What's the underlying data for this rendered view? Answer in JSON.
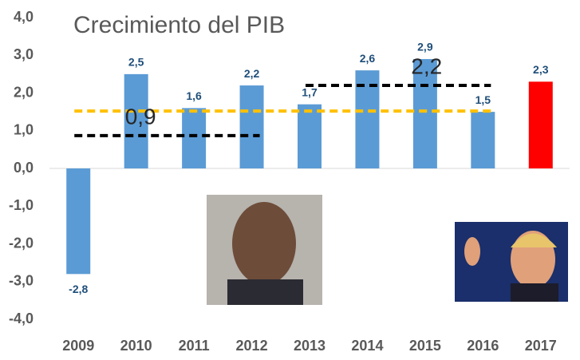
{
  "chart_data": {
    "type": "bar",
    "title": "Crecimiento del PIB",
    "categories": [
      "2009",
      "2010",
      "2011",
      "2012",
      "2013",
      "2014",
      "2015",
      "2016",
      "2017"
    ],
    "values": [
      -2.8,
      2.5,
      1.6,
      2.2,
      1.7,
      2.6,
      2.9,
      1.5,
      2.3
    ],
    "value_labels": [
      "-2,8",
      "2,5",
      "1,6",
      "2,2",
      "1,7",
      "2,6",
      "2,9",
      "1,5",
      "2,3"
    ],
    "colors": [
      "#5b9bd5",
      "#5b9bd5",
      "#5b9bd5",
      "#5b9bd5",
      "#5b9bd5",
      "#5b9bd5",
      "#5b9bd5",
      "#5b9bd5",
      "#ff0000"
    ],
    "ylim": [
      -4,
      4
    ],
    "yticks": [
      {
        "value": 4,
        "label": "4,0"
      },
      {
        "value": 3,
        "label": "3,0"
      },
      {
        "value": 2,
        "label": "2,0"
      },
      {
        "value": 1,
        "label": "1,0"
      },
      {
        "value": 0,
        "label": "0,0"
      },
      {
        "value": -1,
        "label": "-1,0"
      },
      {
        "value": -2,
        "label": "-2,0"
      },
      {
        "value": -3,
        "label": "-3,0"
      },
      {
        "value": -4,
        "label": "-4,0"
      }
    ],
    "grid": false,
    "reference_lines": [
      {
        "value": 1.52,
        "color": "#ffc000",
        "start": "2009",
        "end": "2016"
      },
      {
        "value": 0.87,
        "label": "0,9",
        "color": "#000000",
        "start": "2009",
        "end": "2012"
      },
      {
        "value": 2.2,
        "label": "2,2",
        "color": "#000000",
        "start": "2013",
        "end": "2016"
      }
    ]
  }
}
